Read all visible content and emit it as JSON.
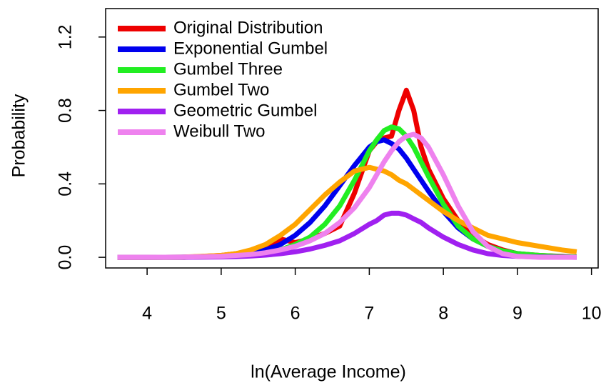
{
  "chart_data": {
    "type": "line",
    "x_label": "ln(Average Income)",
    "y_label": "Probability",
    "x": [
      3.6,
      4.0,
      4.5,
      5.0,
      5.2,
      5.4,
      5.6,
      5.8,
      6.0,
      6.2,
      6.4,
      6.6,
      6.8,
      7.0,
      7.1,
      7.2,
      7.3,
      7.4,
      7.5,
      7.6,
      7.7,
      7.8,
      8.0,
      8.2,
      8.4,
      8.6,
      8.8,
      9.0,
      9.3,
      9.6,
      9.8
    ],
    "series": [
      {
        "name": "Original Distribution",
        "color": "#ee0000",
        "values": [
          0,
          0,
          0,
          0.01,
          0.02,
          0.03,
          0.05,
          0.1,
          0.08,
          0.1,
          0.13,
          0.17,
          0.35,
          0.58,
          0.63,
          0.65,
          0.66,
          0.8,
          0.91,
          0.8,
          0.6,
          0.48,
          0.32,
          0.2,
          0.12,
          0.07,
          0.04,
          0.02,
          0.01,
          0.005,
          0.002
        ]
      },
      {
        "name": "Exponential Gumbel",
        "color": "#0000ee",
        "values": [
          0,
          0,
          0.001,
          0.005,
          0.01,
          0.02,
          0.04,
          0.07,
          0.12,
          0.19,
          0.28,
          0.39,
          0.5,
          0.6,
          0.63,
          0.64,
          0.62,
          0.59,
          0.54,
          0.48,
          0.42,
          0.36,
          0.25,
          0.16,
          0.1,
          0.06,
          0.035,
          0.02,
          0.008,
          0.003,
          0.002
        ]
      },
      {
        "name": "Gumbel Three",
        "color": "#22ee22",
        "values": [
          0,
          0,
          0,
          0.003,
          0.006,
          0.012,
          0.02,
          0.04,
          0.07,
          0.11,
          0.18,
          0.28,
          0.42,
          0.58,
          0.64,
          0.69,
          0.71,
          0.7,
          0.66,
          0.6,
          0.52,
          0.44,
          0.29,
          0.17,
          0.1,
          0.06,
          0.035,
          0.02,
          0.01,
          0.004,
          0.002
        ]
      },
      {
        "name": "Gumbel Two",
        "color": "#ffa500",
        "values": [
          0,
          0,
          0.001,
          0.01,
          0.02,
          0.04,
          0.07,
          0.12,
          0.18,
          0.26,
          0.34,
          0.41,
          0.47,
          0.49,
          0.48,
          0.47,
          0.45,
          0.42,
          0.4,
          0.37,
          0.34,
          0.31,
          0.25,
          0.2,
          0.16,
          0.12,
          0.1,
          0.08,
          0.06,
          0.04,
          0.03
        ]
      },
      {
        "name": "Geometric Gumbel",
        "color": "#a020f0",
        "values": [
          0,
          0,
          0,
          0.002,
          0.004,
          0.007,
          0.012,
          0.02,
          0.03,
          0.045,
          0.065,
          0.09,
          0.13,
          0.18,
          0.2,
          0.23,
          0.24,
          0.24,
          0.23,
          0.21,
          0.19,
          0.16,
          0.11,
          0.07,
          0.04,
          0.02,
          0.01,
          0.005,
          0.002,
          0.001,
          0
        ]
      },
      {
        "name": "Weibull Two",
        "color": "#ee82ee",
        "values": [
          0,
          0,
          0.001,
          0.005,
          0.01,
          0.015,
          0.025,
          0.04,
          0.06,
          0.09,
          0.13,
          0.19,
          0.27,
          0.38,
          0.45,
          0.52,
          0.58,
          0.63,
          0.66,
          0.67,
          0.65,
          0.6,
          0.45,
          0.28,
          0.14,
          0.06,
          0.02,
          0.005,
          0,
          0,
          0
        ]
      }
    ],
    "xlim": [
      3.44,
      10.09
    ],
    "ylim": [
      -0.058,
      1.355
    ],
    "xticks": [
      4,
      5,
      6,
      7,
      8,
      9,
      10
    ],
    "yticks": [
      {
        "value": 0,
        "label": "0.0"
      },
      0.4,
      0.8,
      1.2
    ],
    "legend": "top-left"
  }
}
